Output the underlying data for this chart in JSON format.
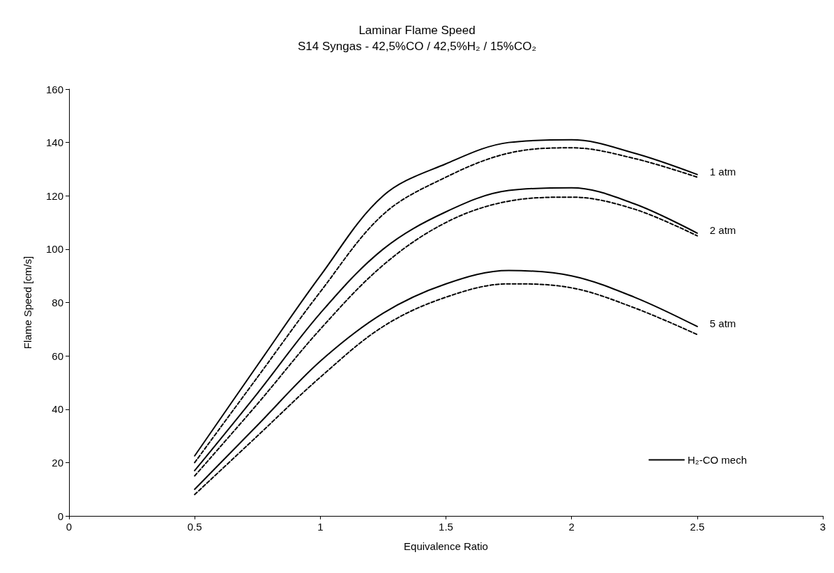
{
  "chart_data": {
    "type": "line",
    "title": "Laminar Flame Speed",
    "subtitle": "S14 Syngas - 42,5%CO / 42,5%H₂ / 15%CO₂",
    "xlabel": "Equivalence Ratio",
    "ylabel": "Flame Speed [cm/s]",
    "x": [
      0.5,
      0.75,
      1.0,
      1.25,
      1.5,
      1.75,
      2.0,
      2.25,
      2.5
    ],
    "series": [
      {
        "name": "H₂-CO mech",
        "color": "#000000",
        "line_style": "solid",
        "values": [
          22.5,
          56.5,
          90,
          120,
          132,
          140,
          141,
          136,
          128
        ]
      },
      {
        "color": "#000000",
        "line_style": "dashed",
        "values": [
          20,
          52,
          84,
          113,
          127,
          136,
          138,
          134,
          127
        ]
      },
      {
        "color": "#000000",
        "line_style": "solid",
        "values": [
          17,
          46,
          76,
          100,
          114,
          122,
          123,
          117,
          106
        ]
      },
      {
        "color": "#000000",
        "line_style": "dashed",
        "values": [
          15,
          42,
          70,
          94,
          110,
          118,
          119.5,
          115,
          105
        ]
      },
      {
        "color": "#000000",
        "line_style": "solid",
        "values": [
          10,
          34,
          58,
          76,
          87,
          92,
          90,
          82,
          71
        ]
      },
      {
        "color": "#000000",
        "line_style": "dashed",
        "values": [
          8,
          30,
          52,
          71,
          82,
          87,
          85.5,
          78,
          68
        ]
      }
    ],
    "annotations": [
      "1 atm",
      "2 atm",
      "5 atm"
    ],
    "xlim": [
      0,
      3
    ],
    "xticks": [
      0,
      0.5,
      1,
      1.5,
      2,
      2.5,
      3
    ],
    "ylim": [
      0,
      160
    ],
    "yticks": [
      0,
      20,
      40,
      60,
      80,
      100,
      120,
      140,
      160
    ],
    "grid": false,
    "legend": "bottom right",
    "marker": "none"
  }
}
